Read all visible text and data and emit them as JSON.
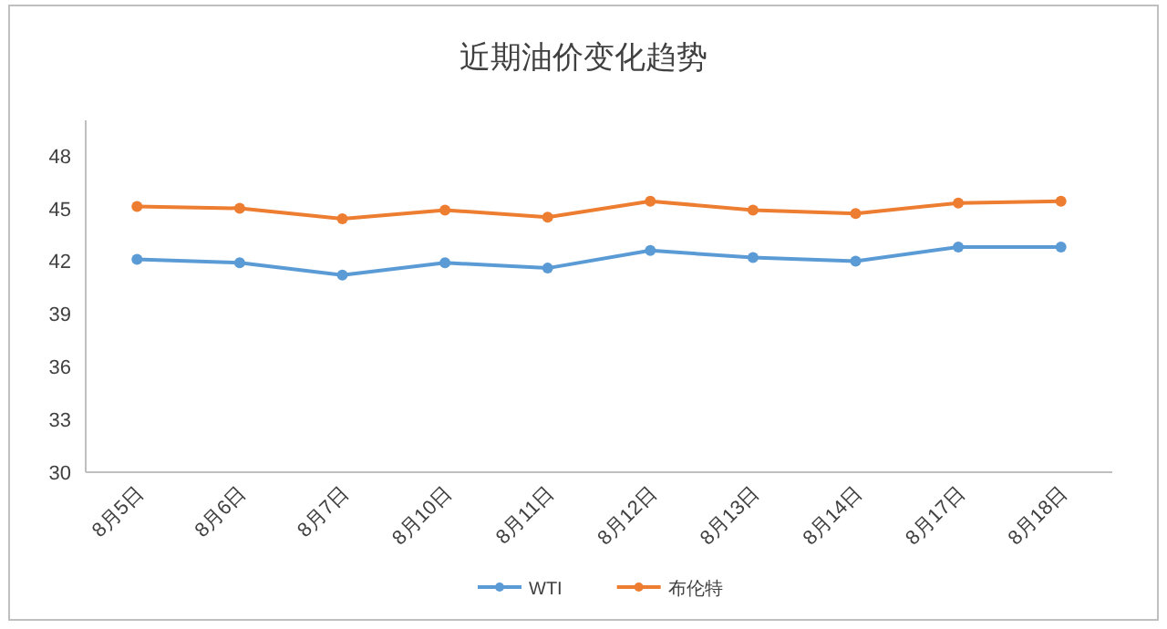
{
  "chart_data": {
    "type": "line",
    "title": "近期油价变化趋势",
    "categories": [
      "8月5日",
      "8月6日",
      "8月7日",
      "8月10日",
      "8月11日",
      "8月12日",
      "8月13日",
      "8月14日",
      "8月17日",
      "8月18日"
    ],
    "series": [
      {
        "name": "WTI",
        "color": "#5b9bd5",
        "values": [
          42.1,
          41.9,
          41.2,
          41.9,
          41.6,
          42.6,
          42.2,
          42.0,
          42.8,
          42.8
        ]
      },
      {
        "name": "布伦特",
        "color": "#ed7d31",
        "values": [
          45.1,
          45.0,
          44.4,
          44.9,
          44.5,
          45.4,
          44.9,
          44.7,
          45.3,
          45.4
        ]
      }
    ],
    "ylim": [
      30,
      50
    ],
    "yticks": [
      30,
      33,
      36,
      39,
      42,
      45,
      48
    ],
    "marker": "circle",
    "legend": "bottom",
    "grid": false
  }
}
